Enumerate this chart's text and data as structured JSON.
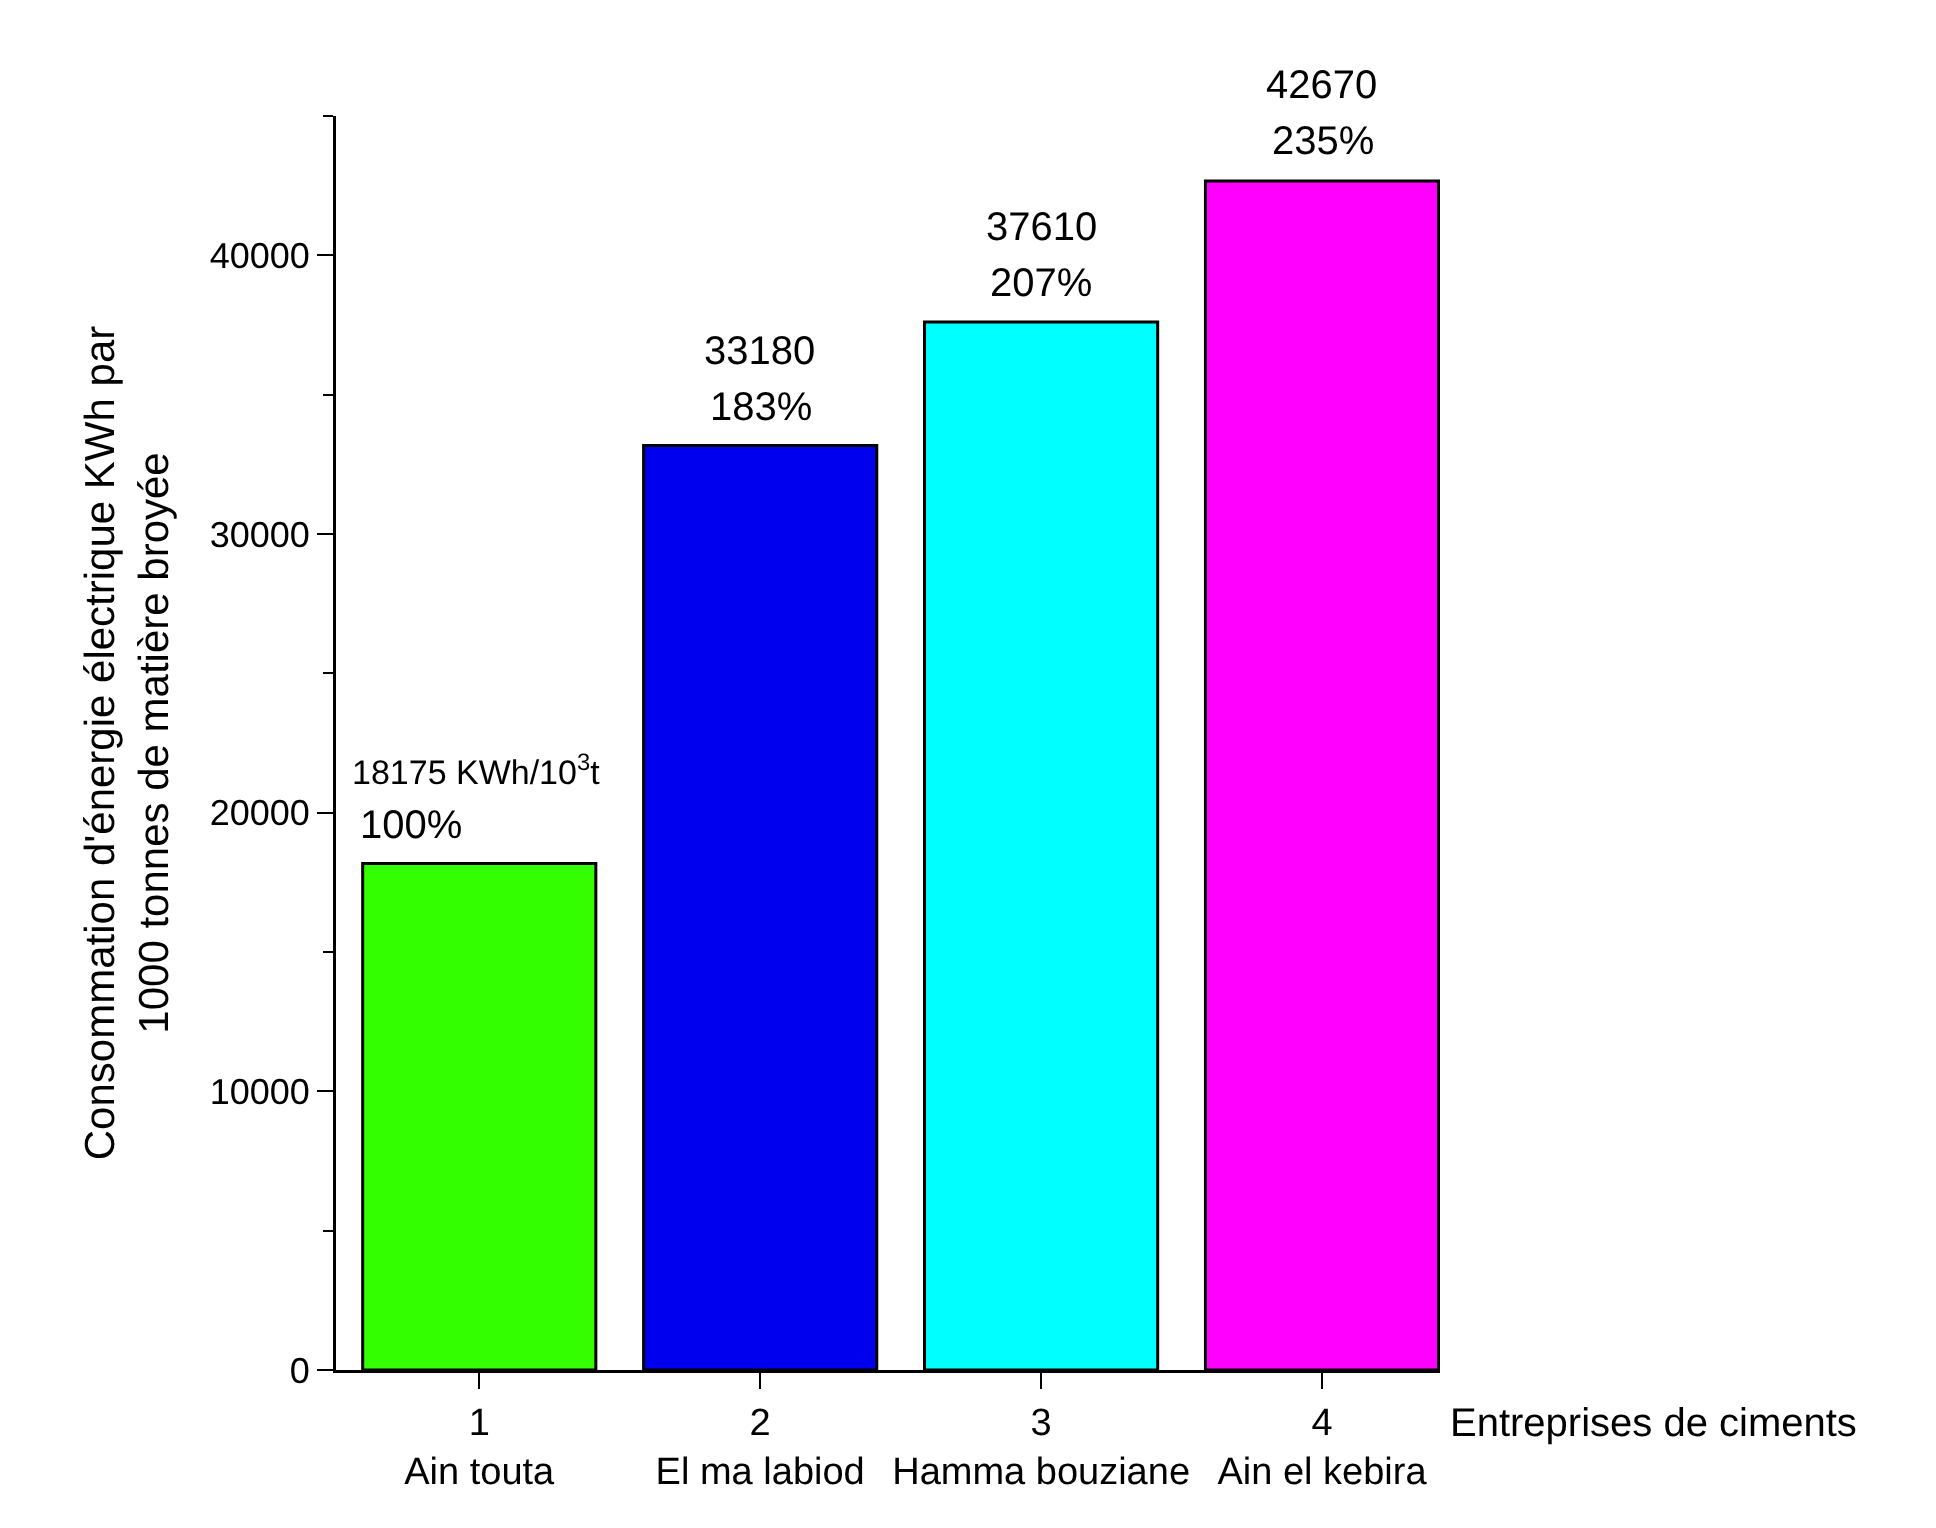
{
  "chart_data": {
    "type": "bar",
    "categories": [
      "1\nAin touta",
      "2\nEl ma labiod",
      "3\nHamma bouziane",
      "4\nAin el kebira"
    ],
    "values": [
      18175,
      33180,
      37610,
      42670
    ],
    "colors": [
      "#33ff00",
      "#0000ee",
      "#00ffff",
      "#ff00ff"
    ],
    "value_labels": [
      "18175 KWh/10$^{3}$t",
      "33180",
      "37610",
      "42670"
    ],
    "annotations": [
      {
        "text": "100%",
        "x": "1\nAin touta",
        "y": 18175
      },
      {
        "text": "183%",
        "x": "2\nEl ma labiod",
        "y": 33180
      },
      {
        "text": "207%",
        "x": "3\nHamma bouziane",
        "y": 37610
      },
      {
        "text": "235%",
        "x": "4\nAin el kebira",
        "y": 42670
      }
    ],
    "xlabel": "Entreprises de ciments",
    "ylabel": "Consommation d'énergie électrique KWh par\n1000 tonnes de matière broyée",
    "ylim": [
      0,
      45000
    ],
    "yticks": [
      0,
      10000,
      20000,
      30000,
      40000
    ],
    "grid": false
  }
}
